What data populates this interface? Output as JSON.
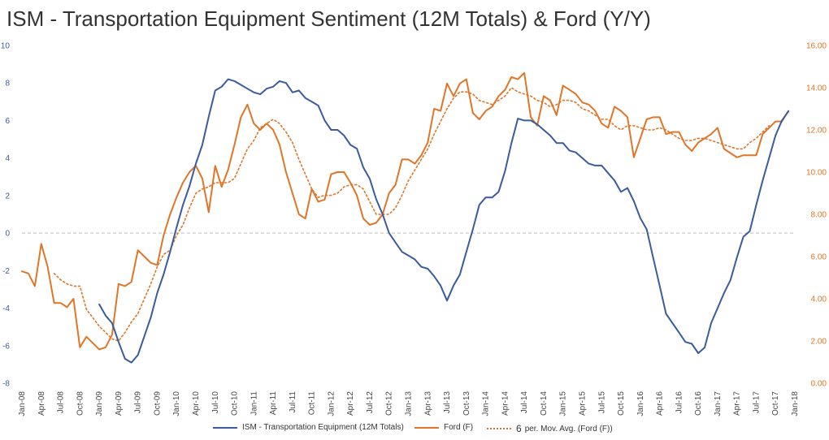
{
  "chart_data": {
    "type": "line",
    "title": "ISM - Transportation Equipment Sentiment (12M Totals) & Ford (Y/Y)",
    "colors": {
      "ism": "#3a5ba0",
      "ford": "#e07528",
      "grid": "#bfbfbf"
    },
    "left_axis": {
      "ylim": [
        -8,
        10
      ],
      "ticks": [
        -8,
        -6,
        -4,
        -2,
        0,
        2,
        4,
        6,
        8,
        10
      ],
      "tick_labels": [
        "-8",
        "-6",
        "-4",
        "-2",
        "0",
        "2",
        "4",
        "6",
        "8",
        "10"
      ]
    },
    "right_axis": {
      "ylim": [
        0,
        16
      ],
      "ticks": [
        0,
        2,
        4,
        6,
        8,
        10,
        12,
        14,
        16
      ],
      "tick_labels": [
        "0.00",
        "2.00",
        "4.00",
        "6.00",
        "8.00",
        "10.00",
        "12.00",
        "14.00",
        "16.00"
      ]
    },
    "x_start": "2008-01",
    "x_labels": [
      "Jan-08",
      "Apr-08",
      "Jul-08",
      "Oct-08",
      "Jan-09",
      "Apr-09",
      "Jul-09",
      "Oct-09",
      "Jan-10",
      "Apr-10",
      "Jul-10",
      "Oct-10",
      "Jan-11",
      "Apr-11",
      "Jul-11",
      "Oct-11",
      "Jan-12",
      "Apr-12",
      "Jul-12",
      "Oct-12",
      "Jan-13",
      "Apr-13",
      "Jul-13",
      "Oct-13",
      "Jan-14",
      "Apr-14",
      "Jul-14",
      "Oct-14",
      "Jan-15",
      "Apr-15",
      "Jul-15",
      "Oct-15",
      "Jan-16",
      "Apr-16",
      "Jul-16",
      "Oct-16",
      "Jan-17",
      "Apr-17",
      "Jul-17",
      "Oct-17",
      "Jan-18"
    ],
    "series": [
      {
        "name": "ISM - Transportation Equipment (12M Totals)",
        "axis": "left",
        "start_index": 12,
        "values": [
          -3.8,
          -4.4,
          -4.8,
          -5.8,
          -6.7,
          -6.9,
          -6.5,
          -5.5,
          -4.5,
          -3.2,
          -2.2,
          -1.0,
          0.3,
          1.5,
          2.5,
          3.7,
          4.7,
          6.2,
          7.6,
          7.8,
          8.2,
          8.1,
          7.9,
          7.7,
          7.5,
          7.4,
          7.7,
          7.8,
          8.1,
          8.0,
          7.5,
          7.6,
          7.2,
          7.0,
          6.8,
          6.0,
          5.5,
          5.5,
          5.2,
          4.7,
          4.5,
          3.5,
          2.9,
          1.8,
          1.0,
          0.0,
          -0.5,
          -1.0,
          -1.2,
          -1.4,
          -1.8,
          -1.9,
          -2.3,
          -2.8,
          -3.6,
          -2.8,
          -2.2,
          -1.0,
          0.2,
          1.5,
          1.9,
          1.9,
          2.2,
          3.3,
          4.8,
          6.1,
          6.0,
          6.0,
          5.8,
          5.5,
          5.2,
          4.8,
          4.8,
          4.4,
          4.3,
          4.0,
          3.7,
          3.6,
          3.6,
          3.2,
          2.8,
          2.2,
          2.4,
          1.7,
          0.8,
          0.2,
          -1.3,
          -2.8,
          -4.3,
          -4.8,
          -5.3,
          -5.8,
          -5.9,
          -6.4,
          -6.1,
          -4.8,
          -4.0,
          -3.2,
          -2.5,
          -1.3,
          -0.2,
          0.1,
          1.5,
          2.8,
          4.0,
          5.2,
          6.0,
          6.5
        ]
      },
      {
        "name": "Ford (F)",
        "axis": "right",
        "start_index": 0,
        "values": [
          5.3,
          5.2,
          4.6,
          6.6,
          5.5,
          3.8,
          3.8,
          3.6,
          4.0,
          1.7,
          2.2,
          1.9,
          1.6,
          1.7,
          2.3,
          4.7,
          4.6,
          4.8,
          6.3,
          6.0,
          5.7,
          5.6,
          7.0,
          8.0,
          8.8,
          9.5,
          10.0,
          10.3,
          9.7,
          8.1,
          10.3,
          9.3,
          10.1,
          11.3,
          12.6,
          13.2,
          12.3,
          12.0,
          12.3,
          12.0,
          11.3,
          10.0,
          9.0,
          8.0,
          7.8,
          9.2,
          8.6,
          8.7,
          9.9,
          10.0,
          10.0,
          9.5,
          8.9,
          7.8,
          7.5,
          7.6,
          8.0,
          9.0,
          9.4,
          10.6,
          10.6,
          10.4,
          10.8,
          11.4,
          13.0,
          12.9,
          14.2,
          13.6,
          14.2,
          14.4,
          12.8,
          12.5,
          12.9,
          13.1,
          13.6,
          13.9,
          14.5,
          14.4,
          14.7,
          12.6,
          12.2,
          13.6,
          13.4,
          12.7,
          14.1,
          13.9,
          13.7,
          13.3,
          13.2,
          12.9,
          12.3,
          12.1,
          13.1,
          12.9,
          12.6,
          10.7,
          11.6,
          12.5,
          12.6,
          12.6,
          11.8,
          11.9,
          11.9,
          11.3,
          11.0,
          11.4,
          11.6,
          11.8,
          12.1,
          11.1,
          10.9,
          10.7,
          10.8,
          10.8,
          10.8,
          11.8,
          12.1,
          12.4,
          12.4,
          12.9
        ]
      },
      {
        "name": "6 per. Mov. Avg. (Ford (F))",
        "axis": "right",
        "start_index": 5,
        "values": [
          5.2,
          4.9,
          4.7,
          4.6,
          4.6,
          3.5,
          3.1,
          2.7,
          2.4,
          2.1,
          2.0,
          2.4,
          2.9,
          3.3,
          4.0,
          4.7,
          5.5,
          6.1,
          6.3,
          7.0,
          7.5,
          8.3,
          9.0,
          9.2,
          9.3,
          9.5,
          9.5,
          9.5,
          9.7,
          10.4,
          11.1,
          11.5,
          12.1,
          12.3,
          12.5,
          12.3,
          11.9,
          11.4,
          10.6,
          9.9,
          9.2,
          8.8,
          8.9,
          8.9,
          9.0,
          9.3,
          9.4,
          9.4,
          9.2,
          8.6,
          8.0,
          8.0,
          8.0,
          8.3,
          8.9,
          9.6,
          10.1,
          10.6,
          11.1,
          11.8,
          12.4,
          13.0,
          13.5,
          13.8,
          13.8,
          13.7,
          13.4,
          13.3,
          13.2,
          13.4,
          13.6,
          14.0,
          13.8,
          13.7,
          13.6,
          13.4,
          13.3,
          13.1,
          13.2,
          13.4,
          13.4,
          13.3,
          13.0,
          12.9,
          12.7,
          12.5,
          12.5,
          12.2,
          12.0,
          12.2,
          12.2,
          12.1,
          12.0,
          12.0,
          12.1,
          12.0,
          11.8,
          11.6,
          11.5,
          11.5,
          11.6,
          11.6,
          11.5,
          11.4,
          11.3,
          11.2,
          11.1,
          11.1,
          11.4,
          11.6,
          11.9,
          12.2
        ]
      }
    ],
    "legend": {
      "position": "bottom",
      "ism_label": "ISM - Transportation Equipment (12M Totals)",
      "ford_label": "Ford (F)",
      "ma_label_num": "6",
      "ma_label_text": "per. Mov. Avg.  (Ford (F))"
    }
  }
}
